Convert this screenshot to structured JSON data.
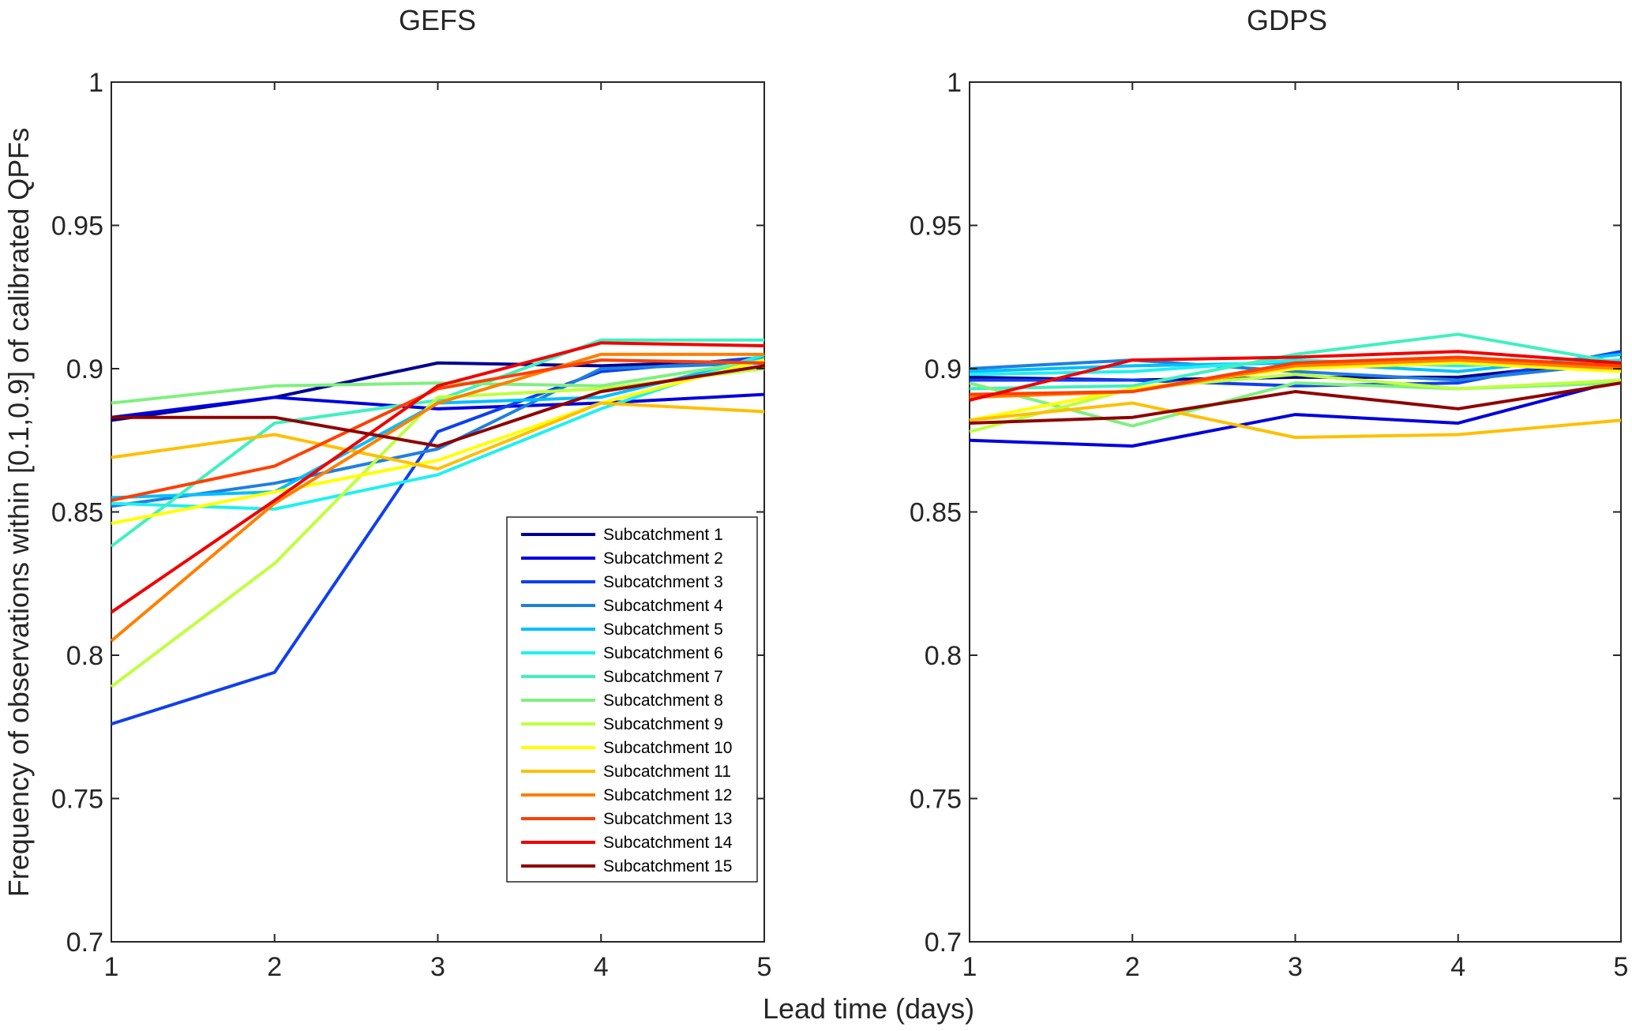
{
  "chart_data": {
    "type": "line",
    "xlabel": "Lead time (days)",
    "ylabel": "Frequency of observations within [0.1,0.9] of calibrated QPFs",
    "x": [
      1,
      2,
      3,
      4,
      5
    ],
    "xlim": [
      1,
      5
    ],
    "ylim": [
      0.7,
      1
    ],
    "xticks": [
      "1",
      "2",
      "3",
      "4",
      "5"
    ],
    "yticks": [
      "0.7",
      "0.75",
      "0.8",
      "0.85",
      "0.9",
      "0.95",
      "1"
    ],
    "grid": false,
    "legend_position": "lower-right of left panel",
    "colors": [
      "#00008F",
      "#0000DF",
      "#0F3FEF",
      "#1F7FE0",
      "#00BFFF",
      "#20F0F0",
      "#40F0C0",
      "#7FF07F",
      "#BFFF3F",
      "#FFFF00",
      "#FFBF00",
      "#FF7F00",
      "#FF3F00",
      "#F00000",
      "#8F0000"
    ],
    "panels": [
      {
        "title": "GEFS",
        "series": [
          {
            "name": "Subcatchment 1",
            "values": [
              0.882,
              0.89,
              0.902,
              0.901,
              0.903
            ]
          },
          {
            "name": "Subcatchment 2",
            "values": [
              0.883,
              0.89,
              0.886,
              0.888,
              0.891
            ]
          },
          {
            "name": "Subcatchment 3",
            "values": [
              0.776,
              0.794,
              0.878,
              0.899,
              0.904
            ]
          },
          {
            "name": "Subcatchment 4",
            "values": [
              0.852,
              0.86,
              0.872,
              0.9,
              0.902
            ]
          },
          {
            "name": "Subcatchment 5",
            "values": [
              0.855,
              0.857,
              0.888,
              0.89,
              0.904
            ]
          },
          {
            "name": "Subcatchment 6",
            "values": [
              0.853,
              0.851,
              0.863,
              0.886,
              0.905
            ]
          },
          {
            "name": "Subcatchment 7",
            "values": [
              0.838,
              0.881,
              0.889,
              0.91,
              0.91
            ]
          },
          {
            "name": "Subcatchment 8",
            "values": [
              0.888,
              0.894,
              0.895,
              0.894,
              0.903
            ]
          },
          {
            "name": "Subcatchment 9",
            "values": [
              0.789,
              0.832,
              0.89,
              0.893,
              0.9
            ]
          },
          {
            "name": "Subcatchment 10",
            "values": [
              0.846,
              0.857,
              0.868,
              0.888,
              0.903
            ]
          },
          {
            "name": "Subcatchment 11",
            "values": [
              0.869,
              0.877,
              0.865,
              0.888,
              0.885
            ]
          },
          {
            "name": "Subcatchment 12",
            "values": [
              0.805,
              0.853,
              0.888,
              0.905,
              0.905
            ]
          },
          {
            "name": "Subcatchment 13",
            "values": [
              0.854,
              0.866,
              0.893,
              0.903,
              0.902
            ]
          },
          {
            "name": "Subcatchment 14",
            "values": [
              0.815,
              0.854,
              0.894,
              0.909,
              0.908
            ]
          },
          {
            "name": "Subcatchment 15",
            "values": [
              0.883,
              0.883,
              0.873,
              0.892,
              0.901
            ]
          }
        ]
      },
      {
        "title": "GDPS",
        "series": [
          {
            "name": "Subcatchment 1",
            "values": [
              0.897,
              0.896,
              0.897,
              0.897,
              0.903
            ]
          },
          {
            "name": "Subcatchment 2",
            "values": [
              0.875,
              0.873,
              0.884,
              0.881,
              0.896
            ]
          },
          {
            "name": "Subcatchment 3",
            "values": [
              0.896,
              0.896,
              0.894,
              0.895,
              0.906
            ]
          },
          {
            "name": "Subcatchment 4",
            "values": [
              0.9,
              0.903,
              0.899,
              0.896,
              0.902
            ]
          },
          {
            "name": "Subcatchment 5",
            "values": [
              0.899,
              0.901,
              0.902,
              0.899,
              0.905
            ]
          },
          {
            "name": "Subcatchment 6",
            "values": [
              0.898,
              0.899,
              0.903,
              0.901,
              0.903
            ]
          },
          {
            "name": "Subcatchment 7",
            "values": [
              0.893,
              0.894,
              0.905,
              0.912,
              0.902
            ]
          },
          {
            "name": "Subcatchment 8",
            "values": [
              0.895,
              0.88,
              0.895,
              0.893,
              0.895
            ]
          },
          {
            "name": "Subcatchment 9",
            "values": [
              0.878,
              0.893,
              0.898,
              0.893,
              0.896
            ]
          },
          {
            "name": "Subcatchment 10",
            "values": [
              0.882,
              0.893,
              0.9,
              0.902,
              0.899
            ]
          },
          {
            "name": "Subcatchment 11",
            "values": [
              0.882,
              0.888,
              0.876,
              0.877,
              0.882
            ]
          },
          {
            "name": "Subcatchment 12",
            "values": [
              0.89,
              0.892,
              0.901,
              0.903,
              0.9
            ]
          },
          {
            "name": "Subcatchment 13",
            "values": [
              0.891,
              0.892,
              0.902,
              0.904,
              0.901
            ]
          },
          {
            "name": "Subcatchment 14",
            "values": [
              0.889,
              0.903,
              0.904,
              0.906,
              0.902
            ]
          },
          {
            "name": "Subcatchment 15",
            "values": [
              0.881,
              0.883,
              0.892,
              0.886,
              0.895
            ]
          }
        ]
      }
    ]
  }
}
